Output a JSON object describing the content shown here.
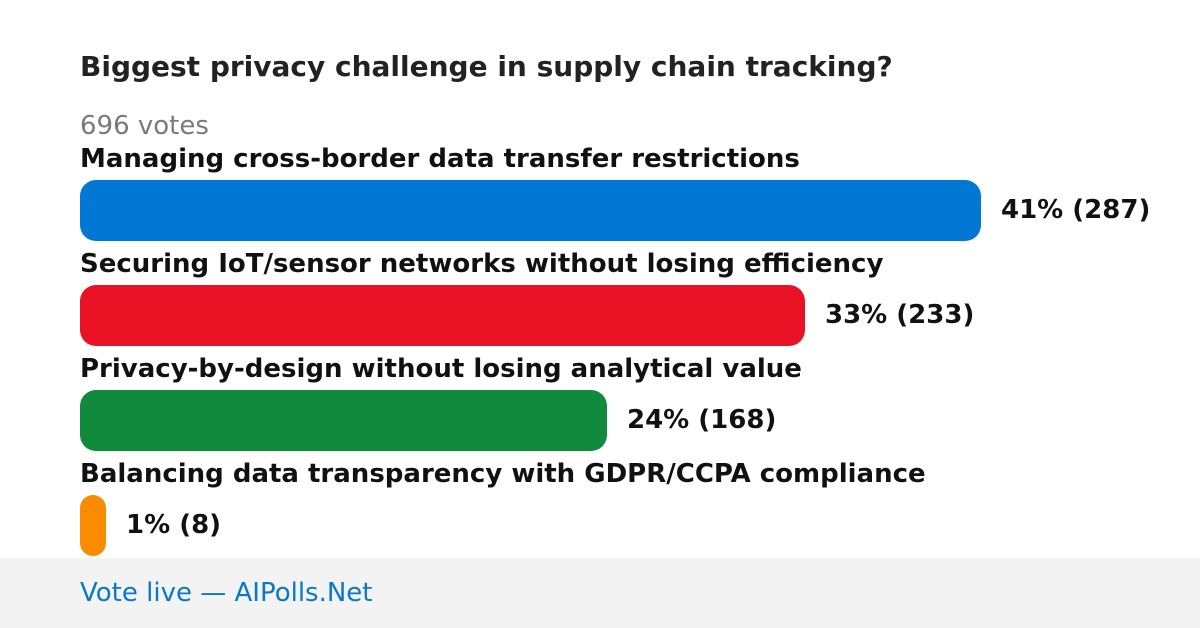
{
  "poll": {
    "question": "Biggest privacy challenge in supply chain tracking?",
    "votes_label": "696 votes"
  },
  "chart_data": {
    "type": "bar",
    "orientation": "horizontal",
    "title": "Biggest privacy challenge in supply chain tracking?",
    "total_votes": 696,
    "max_percent": 41,
    "categories": [
      "Managing cross-border data transfer restrictions",
      "Securing IoT/sensor networks without losing efficiency",
      "Privacy-by-design without losing analytical value",
      "Balancing data transparency with GDPR/CCPA compliance"
    ],
    "options": [
      {
        "label": "Managing cross-border data transfer restrictions",
        "percent": 41,
        "votes": 287,
        "value_label": "41% (287)",
        "color": "#0277d4"
      },
      {
        "label": "Securing IoT/sensor networks without losing efficiency",
        "percent": 33,
        "votes": 233,
        "value_label": "33% (233)",
        "color": "#e81224"
      },
      {
        "label": "Privacy-by-design without losing analytical value",
        "percent": 24,
        "votes": 168,
        "value_label": "24% (168)",
        "color": "#128a3e"
      },
      {
        "label": "Balancing data transparency with GDPR/CCPA compliance",
        "percent": 1,
        "votes": 8,
        "value_label": "1% (8)",
        "color": "#fb8c00"
      }
    ]
  },
  "footer": {
    "link_text": "Vote live — AIPolls.Net",
    "link_color": "#0a78c8"
  }
}
